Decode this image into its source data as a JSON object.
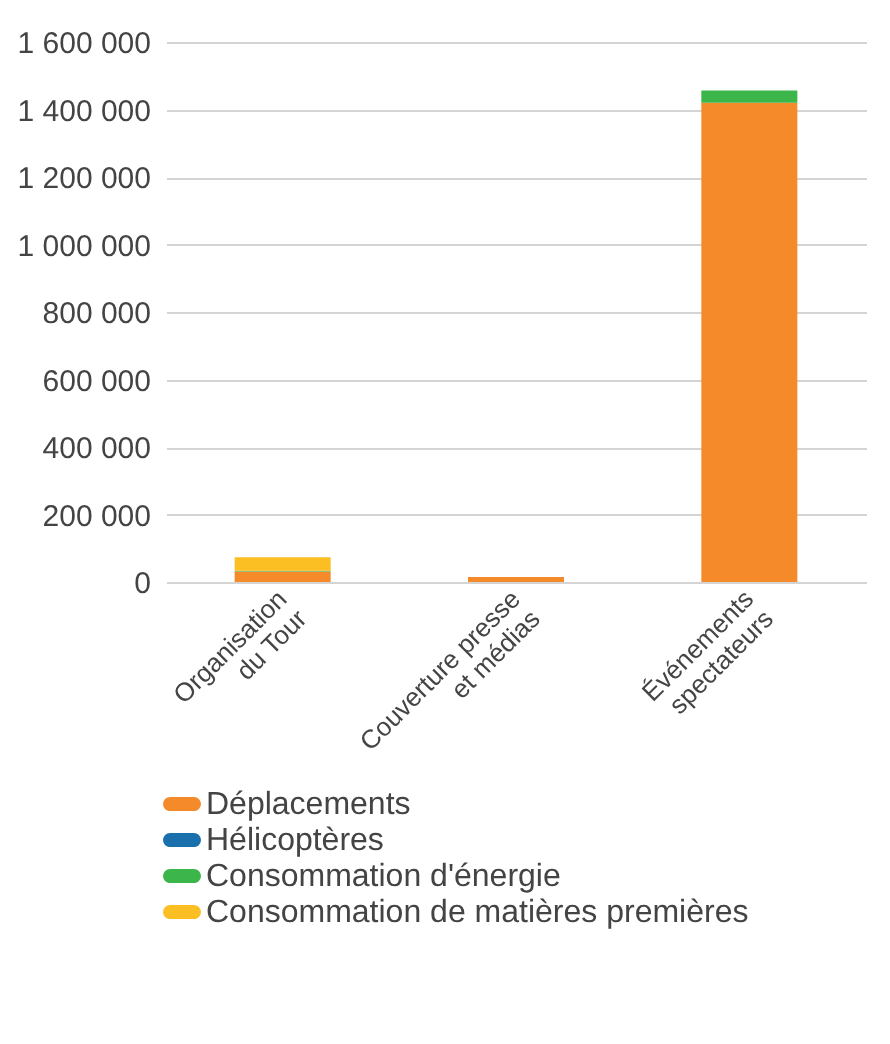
{
  "chart_data": {
    "type": "bar",
    "stacked": true,
    "categories": [
      "Organisation\ndu Tour",
      "Couverture presse\net médias",
      "Événements\nspectateurs"
    ],
    "series": [
      {
        "name": "Déplacements",
        "color": "#f58a2a",
        "values": [
          31000,
          15000,
          1420000
        ]
      },
      {
        "name": "Hélicoptères",
        "color": "#1a6fad",
        "values": [
          0,
          0,
          0
        ]
      },
      {
        "name": "Consommation d'énergie",
        "color": "#3cb54a",
        "values": [
          2000,
          0,
          36000
        ]
      },
      {
        "name": "Consommation de matières premières",
        "color": "#fbbf24",
        "values": [
          40000,
          0,
          0
        ]
      }
    ],
    "ylim": [
      0,
      1600000
    ],
    "yticks": [
      {
        "value": 0,
        "label": "0"
      },
      {
        "value": 200000,
        "label": "200 000"
      },
      {
        "value": 400000,
        "label": "400 000"
      },
      {
        "value": 600000,
        "label": "600 000"
      },
      {
        "value": 800000,
        "label": "800 000"
      },
      {
        "value": 1000000,
        "label": "1 000 000"
      },
      {
        "value": 1200000,
        "label": "1 200 000"
      },
      {
        "value": 1400000,
        "label": "1 400 000"
      },
      {
        "value": 1600000,
        "label": "1 600 000"
      }
    ],
    "grid": "y",
    "legend": "bottom"
  }
}
